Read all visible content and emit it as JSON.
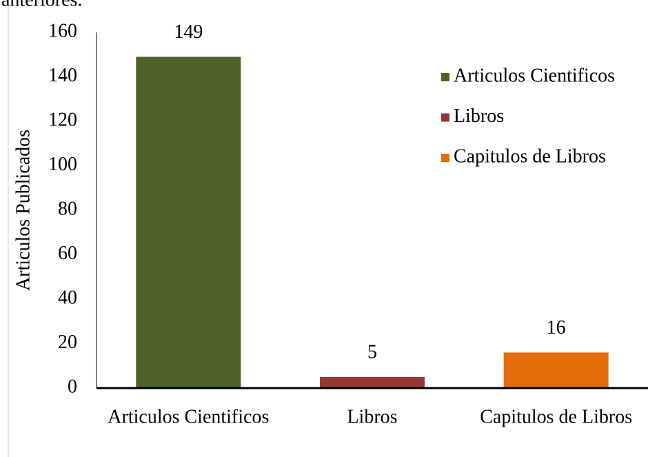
{
  "page_text": "anteriores.",
  "chart_data": {
    "type": "bar",
    "y_label": "Articulos Publicados",
    "categories": [
      "Articulos Cientificos",
      "Libros",
      "Capitulos de Libros"
    ],
    "values": [
      149,
      5,
      16
    ],
    "colors": [
      "#4f6228",
      "#953735",
      "#e46c0a"
    ],
    "ylim": [
      0,
      160
    ],
    "yticks": [
      0,
      20,
      40,
      60,
      80,
      100,
      120,
      140,
      160
    ],
    "grid": false,
    "legend": "top-right",
    "data_labels": true
  }
}
